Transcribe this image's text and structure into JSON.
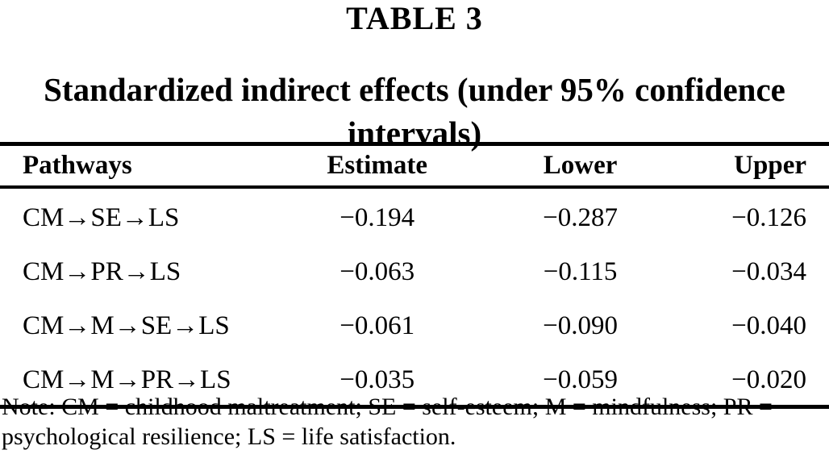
{
  "table_label": "TABLE 3",
  "title": "Standardized indirect effects (under 95% confidence intervals)",
  "table": {
    "columns": [
      "Pathways",
      "Estimate",
      "Lower",
      "Upper"
    ],
    "rows": [
      {
        "pathway": "CM→SE→LS",
        "estimate": "−0.194",
        "lower": "−0.287",
        "upper": "−0.126"
      },
      {
        "pathway": "CM→PR→LS",
        "estimate": "−0.063",
        "lower": "−0.115",
        "upper": "−0.034"
      },
      {
        "pathway": "CM→M→SE→LS",
        "estimate": "−0.061",
        "lower": "−0.090",
        "upper": "−0.040"
      },
      {
        "pathway": "CM→M→PR→LS",
        "estimate": "−0.035",
        "lower": "−0.059",
        "upper": "−0.020"
      }
    ]
  },
  "note": "Note: CM = childhood maltreatment; SE = self-esteem; M = mindfulness; PR = psychological resilience; LS = life satisfaction.",
  "colors": {
    "text": "#000000",
    "background": "#ffffff",
    "rule": "#000000"
  }
}
